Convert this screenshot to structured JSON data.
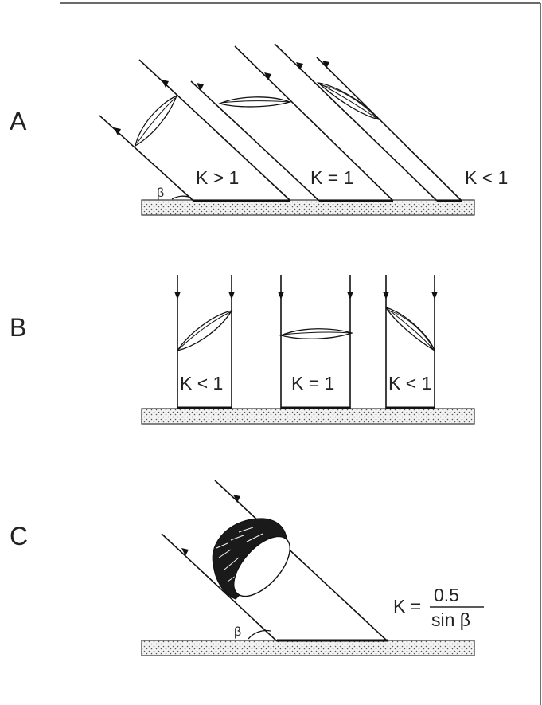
{
  "panels": {
    "a": {
      "label": "A",
      "k_labels": [
        "K > 1",
        "K = 1",
        "K < 1"
      ],
      "angle_symbol": "β"
    },
    "b": {
      "label": "B",
      "k_labels": [
        "K < 1",
        "K = 1",
        "K < 1"
      ]
    },
    "c": {
      "label": "C",
      "angle_symbol": "β",
      "formula": {
        "lhs": "K =",
        "numerator": "0.5",
        "denominator": "sin β"
      }
    }
  }
}
